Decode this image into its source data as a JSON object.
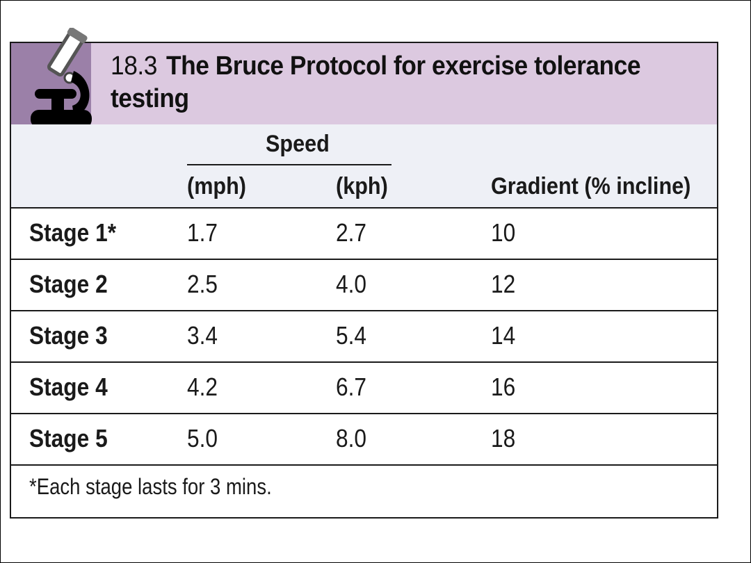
{
  "title": {
    "number": "18.3",
    "line1": "The Bruce Protocol for exercise tolerance",
    "line2": "testing"
  },
  "icon": "microscope-icon",
  "colors": {
    "title_band": "#dcc9e0",
    "icon_tab": "#9b80a8",
    "header_band": "#eef0f6"
  },
  "table": {
    "group_header": "Speed",
    "columns": [
      "",
      "(mph)",
      "(kph)",
      "Gradient (% incline)"
    ],
    "rows": [
      {
        "stage": "Stage 1*",
        "mph": "1.7",
        "kph": "2.7",
        "gradient": "10"
      },
      {
        "stage": "Stage 2",
        "mph": "2.5",
        "kph": "4.0",
        "gradient": "12"
      },
      {
        "stage": "Stage 3",
        "mph": "3.4",
        "kph": "5.4",
        "gradient": "14"
      },
      {
        "stage": "Stage 4",
        "mph": "4.2",
        "kph": "6.7",
        "gradient": "16"
      },
      {
        "stage": "Stage 5",
        "mph": "5.0",
        "kph": "8.0",
        "gradient": "18"
      }
    ],
    "footnote": "*Each stage lasts for 3 mins."
  }
}
